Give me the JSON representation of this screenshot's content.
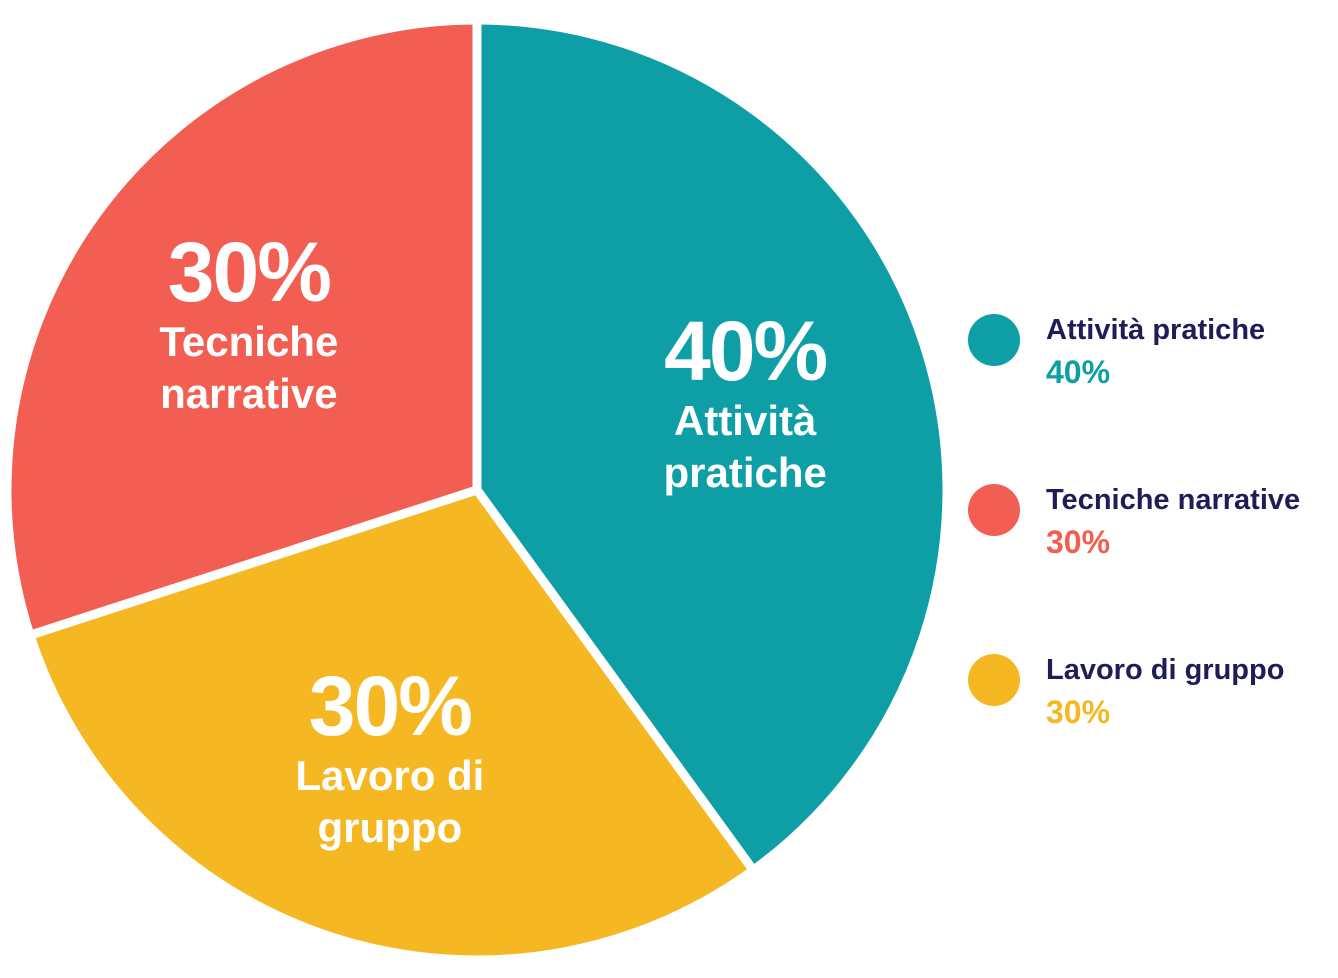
{
  "chart_data": {
    "type": "pie",
    "categories": [
      "Attività pratiche",
      "Tecniche narrative",
      "Lavoro di gruppo"
    ],
    "values": [
      40,
      30,
      30
    ],
    "value_labels": [
      "40%",
      "30%",
      "30%"
    ],
    "colors": [
      "#0e9ea6",
      "#f25f52",
      "#f5b822"
    ],
    "legend": "right"
  }
}
